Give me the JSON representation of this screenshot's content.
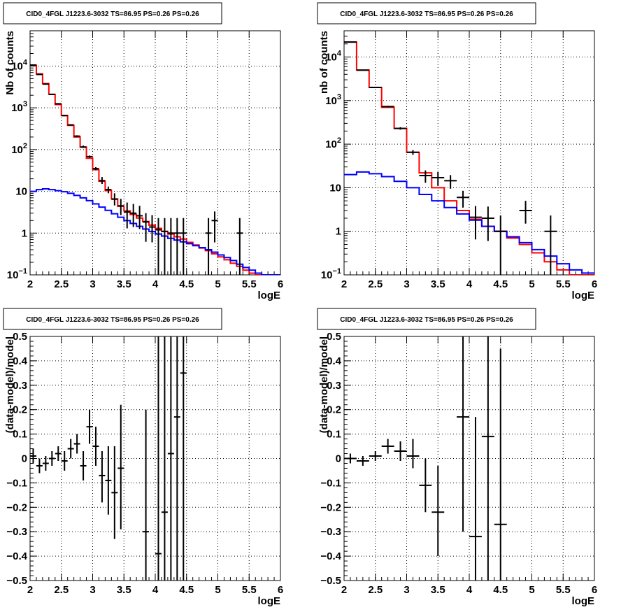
{
  "chart_data": [
    {
      "type": "line",
      "title": "CID0_4FGL J1223.6-3032 TS=86.95 PS=0.26 PS=0.26",
      "xlabel": "logE",
      "ylabel": "Nb of counts",
      "xlim": [
        2,
        6
      ],
      "ylim": [
        0.1,
        70000
      ],
      "yscale": "log",
      "grid": true,
      "x_ticks": [
        "2",
        "2.5",
        "3",
        "3.5",
        "4",
        "4.5",
        "5",
        "5.5",
        "6"
      ],
      "y_ticks": [
        {
          "v": 0.1,
          "label": "10",
          "sup": "−1"
        },
        {
          "v": 1,
          "label": "1",
          "sup": ""
        },
        {
          "v": 10,
          "label": "10",
          "sup": ""
        },
        {
          "v": 100,
          "label": "10",
          "sup": "2"
        },
        {
          "v": 1000,
          "label": "10",
          "sup": "3"
        },
        {
          "v": 10000,
          "label": "10",
          "sup": "4"
        }
      ],
      "bin_width": 0.1,
      "series": [
        {
          "color": "#ff0000",
          "kind": "step",
          "x": [
            2.0,
            2.1,
            2.2,
            2.3,
            2.4,
            2.5,
            2.6,
            2.7,
            2.8,
            2.9,
            3.0,
            3.1,
            3.2,
            3.3,
            3.4,
            3.5,
            3.6,
            3.7,
            3.8,
            3.9,
            4.0,
            4.1,
            4.2,
            4.3,
            4.4,
            4.5,
            4.6,
            4.7,
            4.8,
            4.9,
            5.0,
            5.1,
            5.2,
            5.3,
            5.4,
            5.5,
            5.6,
            5.7,
            5.8,
            5.9
          ],
          "values": [
            10500,
            6500,
            3800,
            2100,
            1200,
            660,
            380,
            200,
            115,
            62,
            33,
            17.5,
            10.5,
            6.6,
            4.4,
            3.4,
            2.8,
            2.3,
            1.9,
            1.55,
            1.3,
            1.1,
            0.95,
            0.82,
            0.72,
            0.6,
            0.52,
            0.44,
            0.38,
            0.32,
            0.27,
            0.23,
            0.19,
            0.16,
            0.13,
            0.11,
            0.1,
            0.1,
            0.1,
            0.1
          ]
        },
        {
          "color": "#0000ff",
          "kind": "step",
          "x": [
            2.0,
            2.1,
            2.2,
            2.3,
            2.4,
            2.5,
            2.6,
            2.7,
            2.8,
            2.9,
            3.0,
            3.1,
            3.2,
            3.3,
            3.4,
            3.5,
            3.6,
            3.7,
            3.8,
            3.9,
            4.0,
            4.1,
            4.2,
            4.3,
            4.4,
            4.5,
            4.6,
            4.7,
            4.8,
            4.9,
            5.0,
            5.1,
            5.2,
            5.3,
            5.4,
            5.5,
            5.6,
            5.7,
            5.8,
            5.9
          ],
          "values": [
            10,
            11,
            11.5,
            11,
            10.4,
            9.8,
            9,
            8,
            7,
            6,
            5,
            4.2,
            3.5,
            2.9,
            2.4,
            2.0,
            1.7,
            1.45,
            1.25,
            1.1,
            0.95,
            0.85,
            0.75,
            0.68,
            0.62,
            0.56,
            0.5,
            0.45,
            0.4,
            0.35,
            0.3,
            0.26,
            0.22,
            0.18,
            0.15,
            0.13,
            0.11,
            0.1,
            0.1,
            0.1
          ]
        },
        {
          "color": "#000000",
          "kind": "errorbar",
          "x": [
            2.05,
            2.15,
            2.25,
            2.35,
            2.45,
            2.55,
            2.65,
            2.75,
            2.85,
            2.95,
            3.05,
            3.15,
            3.25,
            3.35,
            3.45,
            3.55,
            3.65,
            3.75,
            3.85,
            3.95,
            4.05,
            4.15,
            4.25,
            4.35,
            4.45,
            4.85,
            4.95,
            5.35
          ],
          "values": [
            10600,
            6300,
            3700,
            2100,
            1250,
            650,
            390,
            210,
            115,
            68,
            35,
            18,
            11,
            6.5,
            4.5,
            3.2,
            3.0,
            2.6,
            1.85,
            1.4,
            1.2,
            1.1,
            1.0,
            1.0,
            1.0,
            1.0,
            2.0,
            1.0
          ],
          "err_lo": [
            0.05,
            0.05,
            0.05,
            0.05,
            0.05,
            0.05,
            0.05,
            0.05,
            0.05,
            0.05,
            0.05,
            0.05,
            0.05,
            0.05,
            0.05,
            0.05,
            0.05,
            0.05,
            0.05,
            0.05,
            0.05,
            0.05,
            0.05,
            0.05,
            0.05,
            0.05,
            0.05,
            0.05
          ],
          "errbar_lo": [
            10500,
            6200,
            3650,
            2050,
            1220,
            630,
            375,
            200,
            110,
            64,
            32,
            15,
            9,
            4.6,
            2.7,
            1.3,
            1.4,
            1.25,
            0.62,
            0.6,
            0.1,
            0.1,
            0.1,
            0.1,
            0.1,
            0.1,
            0.6,
            0.1
          ],
          "errbar_hi": [
            10700,
            6400,
            3750,
            2150,
            1280,
            670,
            405,
            220,
            125,
            72,
            38,
            22,
            13,
            9,
            6.6,
            5.4,
            5.0,
            4.5,
            3.0,
            2.7,
            2.3,
            2.3,
            2.3,
            2.3,
            2.3,
            2.3,
            3.3,
            2.3
          ]
        }
      ]
    },
    {
      "type": "line",
      "title": "CID0_4FGL J1223.6-3032 TS=86.95 PS=0.26 PS=0.26",
      "xlabel": "logE",
      "ylabel": "nb of counts",
      "xlim": [
        2,
        6
      ],
      "ylim": [
        0.1,
        40000
      ],
      "yscale": "log",
      "grid": true,
      "x_ticks": [
        "2",
        "2.5",
        "3",
        "3.5",
        "4",
        "4.5",
        "5",
        "5.5",
        "6"
      ],
      "y_ticks": [
        {
          "v": 0.1,
          "label": "10",
          "sup": "−1"
        },
        {
          "v": 1,
          "label": "1",
          "sup": ""
        },
        {
          "v": 10,
          "label": "10",
          "sup": ""
        },
        {
          "v": 100,
          "label": "10",
          "sup": "2"
        },
        {
          "v": 1000,
          "label": "10",
          "sup": "3"
        },
        {
          "v": 10000,
          "label": "10",
          "sup": "4"
        }
      ],
      "bin_width": 0.2,
      "series": [
        {
          "color": "#ff0000",
          "kind": "step",
          "x": [
            2.0,
            2.2,
            2.4,
            2.6,
            2.8,
            3.0,
            3.2,
            3.4,
            3.6,
            3.8,
            4.0,
            4.2,
            4.4,
            4.6,
            4.8,
            5.0,
            5.2,
            5.4,
            5.6,
            5.8
          ],
          "values": [
            22000,
            5000,
            2000,
            700,
            230,
            65,
            22,
            10,
            5,
            3,
            1.9,
            1.3,
            1.0,
            0.7,
            0.5,
            0.32,
            0.2,
            0.13,
            0.1,
            0.1
          ]
        },
        {
          "color": "#0000ff",
          "kind": "step",
          "x": [
            2.0,
            2.2,
            2.4,
            2.6,
            2.8,
            3.0,
            3.2,
            3.4,
            3.6,
            3.8,
            4.0,
            4.2,
            4.4,
            4.6,
            4.8,
            5.0,
            5.2,
            5.4,
            5.6,
            5.8
          ],
          "values": [
            20,
            23,
            21,
            18,
            14,
            10,
            7,
            5,
            3.5,
            2.5,
            1.8,
            1.3,
            1.0,
            0.75,
            0.55,
            0.38,
            0.27,
            0.18,
            0.13,
            0.11
          ]
        },
        {
          "color": "#000000",
          "kind": "errorbar",
          "x": [
            2.1,
            2.3,
            2.5,
            2.7,
            2.9,
            3.1,
            3.3,
            3.5,
            3.7,
            3.9,
            4.1,
            4.3,
            4.5,
            4.9,
            5.3
          ],
          "values": [
            22000,
            5000,
            2000,
            730,
            230,
            65,
            19,
            17,
            14.5,
            6,
            2.1,
            2.0,
            1.0,
            3.0,
            1.0
          ],
          "errbar_lo": [
            21700,
            4900,
            1950,
            700,
            215,
            57,
            13,
            11,
            9.5,
            3.5,
            0.65,
            0.6,
            0.1,
            1.5,
            0.1
          ],
          "errbar_hi": [
            22300,
            5100,
            2050,
            760,
            245,
            73,
            25,
            23,
            19.5,
            8.5,
            3.8,
            3.7,
            2.3,
            5.0,
            2.3
          ]
        }
      ]
    },
    {
      "type": "scatter",
      "title": "CID0_4FGL J1223.6-3032 TS=86.95 PS=0.26 PS=0.26",
      "xlabel": "logE",
      "ylabel": "(data-model)/model",
      "xlim": [
        2,
        6
      ],
      "ylim": [
        -0.5,
        0.5
      ],
      "grid": true,
      "x_ticks": [
        "2",
        "2.5",
        "3",
        "3.5",
        "4",
        "4.5",
        "5",
        "5.5",
        "6"
      ],
      "y_ticks": [
        {
          "v": -0.5,
          "label": "−0.5"
        },
        {
          "v": -0.4,
          "label": "−0.4"
        },
        {
          "v": -0.3,
          "label": "−0.3"
        },
        {
          "v": -0.2,
          "label": "−0.2"
        },
        {
          "v": -0.1,
          "label": "−0.1"
        },
        {
          "v": 0,
          "label": "0"
        },
        {
          "v": 0.1,
          "label": "0.1"
        },
        {
          "v": 0.2,
          "label": "0.2"
        },
        {
          "v": 0.3,
          "label": "0.3"
        },
        {
          "v": 0.4,
          "label": "0.4"
        },
        {
          "v": 0.5,
          "label": "0.5"
        }
      ],
      "bin_width": 0.1,
      "series": [
        {
          "color": "#000000",
          "kind": "errorbar",
          "x": [
            2.05,
            2.15,
            2.25,
            2.35,
            2.45,
            2.55,
            2.65,
            2.75,
            2.85,
            2.95,
            3.05,
            3.15,
            3.25,
            3.35,
            3.45,
            3.85,
            4.05,
            4.15,
            4.25,
            4.35,
            4.45
          ],
          "values": [
            0.01,
            -0.03,
            -0.02,
            0.0,
            0.02,
            -0.01,
            0.04,
            0.06,
            -0.03,
            0.13,
            0.05,
            -0.07,
            -0.09,
            -0.14,
            -0.04,
            -0.3,
            -0.39,
            -0.22,
            0.02,
            0.17,
            0.35
          ],
          "errbar_lo": [
            -0.02,
            -0.06,
            -0.05,
            -0.03,
            -0.01,
            -0.05,
            0.0,
            0.02,
            -0.09,
            0.06,
            -0.03,
            -0.18,
            -0.23,
            -0.33,
            -0.29,
            -0.8,
            -0.8,
            -0.8,
            -0.8,
            -0.8,
            -0.8
          ],
          "errbar_hi": [
            0.04,
            0.0,
            0.01,
            0.03,
            0.05,
            0.03,
            0.08,
            0.1,
            0.03,
            0.2,
            0.13,
            0.03,
            0.05,
            0.05,
            0.22,
            0.2,
            0.6,
            0.6,
            0.6,
            0.6,
            0.6
          ]
        }
      ]
    },
    {
      "type": "scatter",
      "title": "CID0_4FGL J1223.6-3032 TS=86.95 PS=0.26 PS=0.26",
      "xlabel": "logE",
      "ylabel": "(data-model)/model",
      "xlim": [
        2,
        6
      ],
      "ylim": [
        -0.5,
        0.5
      ],
      "grid": true,
      "x_ticks": [
        "2",
        "2.5",
        "3",
        "3.5",
        "4",
        "4.5",
        "5",
        "5.5",
        "6"
      ],
      "y_ticks": [
        {
          "v": -0.5,
          "label": "−0.5"
        },
        {
          "v": -0.4,
          "label": "−0.4"
        },
        {
          "v": -0.3,
          "label": "−0.3"
        },
        {
          "v": -0.2,
          "label": "−0.2"
        },
        {
          "v": -0.1,
          "label": "−0.1"
        },
        {
          "v": 0,
          "label": "0"
        },
        {
          "v": 0.1,
          "label": "0.1"
        },
        {
          "v": 0.2,
          "label": "0.2"
        },
        {
          "v": 0.3,
          "label": "0.3"
        },
        {
          "v": 0.4,
          "label": "0.4"
        },
        {
          "v": 0.5,
          "label": "0.5"
        }
      ],
      "bin_width": 0.2,
      "series": [
        {
          "color": "#000000",
          "kind": "errorbar",
          "x": [
            2.1,
            2.3,
            2.5,
            2.7,
            2.9,
            3.1,
            3.3,
            3.5,
            3.9,
            4.1,
            4.3,
            4.5
          ],
          "values": [
            0.0,
            -0.01,
            0.01,
            0.05,
            0.03,
            0.01,
            -0.11,
            -0.22,
            0.17,
            -0.32,
            0.09,
            -0.27
          ],
          "errbar_lo": [
            -0.02,
            -0.03,
            -0.01,
            0.02,
            -0.01,
            -0.04,
            -0.22,
            -0.4,
            -0.3,
            -0.8,
            -0.8,
            -0.8
          ],
          "errbar_hi": [
            0.02,
            0.01,
            0.03,
            0.08,
            0.07,
            0.08,
            0.0,
            -0.03,
            0.6,
            0.17,
            0.6,
            0.45
          ]
        }
      ]
    }
  ]
}
